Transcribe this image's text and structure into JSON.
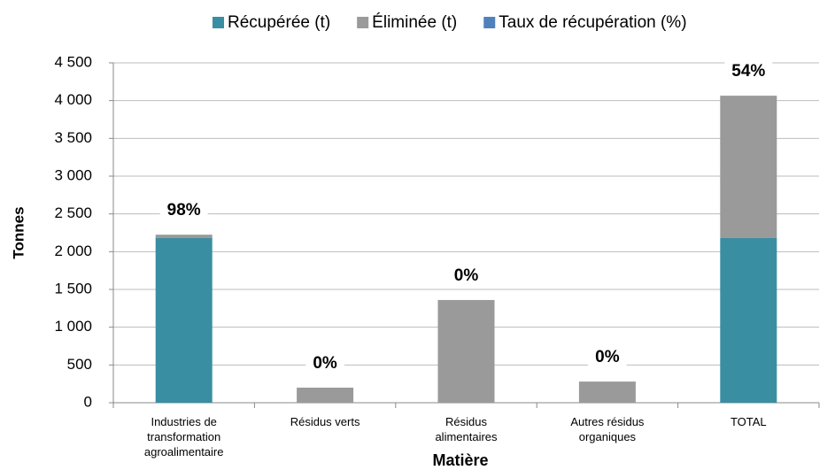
{
  "chart_data": {
    "type": "stacked_bar",
    "xlabel": "Matière",
    "ylabel": "Tonnes",
    "categories": [
      "Industries de transformation agroalimentaire",
      "Résidus verts",
      "Résidus alimentaires",
      "Autres résidus organiques",
      "TOTAL"
    ],
    "series": [
      {
        "name": "Récupérée (t)",
        "color": "#3a8ea2",
        "values": [
          2180,
          0,
          0,
          0,
          2180
        ]
      },
      {
        "name": "Éliminée (t)",
        "color": "#9a9a9a",
        "values": [
          45,
          200,
          1360,
          280,
          1885
        ]
      },
      {
        "name": "Taux de récupération (%)",
        "color": "#4f81bd",
        "values": [
          98,
          0,
          0,
          0,
          54
        ],
        "value_labels": [
          "98%",
          "0%",
          "0%",
          "0%",
          "54%"
        ]
      }
    ],
    "ylim": [
      0,
      4500
    ],
    "yticks": [
      0,
      {
        "value": 500,
        "label": "500"
      },
      {
        "value": 1000,
        "label": "1 000"
      },
      {
        "value": 1500,
        "label": "1 500"
      },
      {
        "value": 2000,
        "label": "2 000"
      },
      {
        "value": 2500,
        "label": "2 500"
      },
      {
        "value": 3000,
        "label": "3 000"
      },
      {
        "value": 3500,
        "label": "3 500"
      },
      {
        "value": 4000,
        "label": "4 000"
      },
      {
        "value": 4500,
        "label": "4 500"
      }
    ],
    "grid": true,
    "legend": "top"
  }
}
